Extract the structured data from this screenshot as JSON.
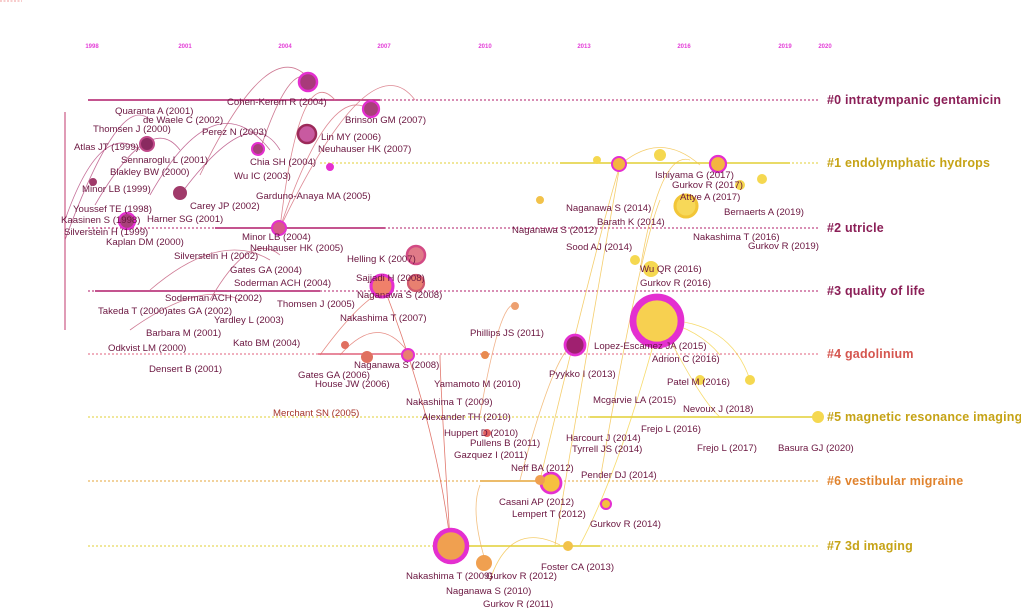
{
  "timeline": {
    "years": [
      "1998",
      "2001",
      "2004",
      "2007",
      "2010",
      "2013",
      "2016",
      "2019",
      "2020"
    ],
    "year_color": "#e43fd8"
  },
  "clusters": [
    {
      "id": "c0",
      "label": "#0 intratympanic gentamicin",
      "color": "#8b1f57"
    },
    {
      "id": "c1",
      "label": "#1 endolymphatic hydrops",
      "color": "#c6a316"
    },
    {
      "id": "c2",
      "label": "#2 utricle",
      "color": "#8b1f57"
    },
    {
      "id": "c3",
      "label": "#3 quality of life",
      "color": "#8b1f57"
    },
    {
      "id": "c4",
      "label": "#4 gadolinium",
      "color": "#d5564f"
    },
    {
      "id": "c5",
      "label": "#5 magnetic resonance imaging",
      "color": "#c6a316"
    },
    {
      "id": "c6",
      "label": "#6 vestibular migraine",
      "color": "#e0832e"
    },
    {
      "id": "c7",
      "label": "#7 3d imaging",
      "color": "#c6a316"
    }
  ],
  "references": [
    {
      "id": "r1",
      "label": "Cohen-Kerem R (2004)",
      "color": "#6b1640"
    },
    {
      "id": "r2",
      "label": "Quaranta A (2001)",
      "color": "#6b1640"
    },
    {
      "id": "r3",
      "label": "Brinson GM (2007)",
      "color": "#6b1640"
    },
    {
      "id": "r4",
      "label": "de Waele C (2002)",
      "color": "#6b1640"
    },
    {
      "id": "r5",
      "label": "Perez N (2003)",
      "color": "#6b1640"
    },
    {
      "id": "r6",
      "label": "Lin MY (2006)",
      "color": "#6b1640"
    },
    {
      "id": "r7",
      "label": "Thomsen J (2000)",
      "color": "#6b1640"
    },
    {
      "id": "r8",
      "label": "Neuhauser HK (2007)",
      "color": "#6b1640"
    },
    {
      "id": "r9",
      "label": "Atlas JT (1999)",
      "color": "#6b1640"
    },
    {
      "id": "r10",
      "label": "Chia SH (2004)",
      "color": "#6b1640"
    },
    {
      "id": "r11",
      "label": "Sennaroglu L (2001)",
      "color": "#6b1640"
    },
    {
      "id": "r12",
      "label": "Blakley BW (2000)",
      "color": "#6b1640"
    },
    {
      "id": "r13",
      "label": "Wu IC (2003)",
      "color": "#6b1640"
    },
    {
      "id": "r14",
      "label": "Minor LB (1999)",
      "color": "#6b1640"
    },
    {
      "id": "r15",
      "label": "Garduno-Anaya MA (2005)",
      "color": "#6b1640"
    },
    {
      "id": "r16",
      "label": "Carey JP (2002)",
      "color": "#6b1640"
    },
    {
      "id": "r17",
      "label": "Youssef TE (1998)",
      "color": "#6b1640"
    },
    {
      "id": "r18",
      "label": "Harner SG (2001)",
      "color": "#6b1640"
    },
    {
      "id": "r19",
      "label": "Kaasinen S (1998)",
      "color": "#6b1640"
    },
    {
      "id": "r20",
      "label": "Silverstein H (1999)",
      "color": "#6b1640"
    },
    {
      "id": "r21",
      "label": "Minor LB (2004)",
      "color": "#6b1640"
    },
    {
      "id": "r22",
      "label": "Kaplan DM (2000)",
      "color": "#6b1640"
    },
    {
      "id": "r23",
      "label": "Neuhauser HK (2005)",
      "color": "#6b1640"
    },
    {
      "id": "r24",
      "label": "Silverstein H (2002)",
      "color": "#6b1640"
    },
    {
      "id": "r25",
      "label": "Helling K (2007)",
      "color": "#6b1640"
    },
    {
      "id": "r26",
      "label": "Gates GA (2004)",
      "color": "#6b1640"
    },
    {
      "id": "r27",
      "label": "Soderman ACH (2004)",
      "color": "#6b1640"
    },
    {
      "id": "r28",
      "label": "Sajjadi H (2008)",
      "color": "#6b1640"
    },
    {
      "id": "r29",
      "label": "Naganawa S (2008)",
      "color": "#6b1640"
    },
    {
      "id": "r30",
      "label": "Soderman ACH (2002)",
      "color": "#6b1640"
    },
    {
      "id": "r31",
      "label": "Thomsen J (2005)",
      "color": "#6b1640"
    },
    {
      "id": "r32",
      "label": "Takeda T (2000)ates GA (2002)",
      "color": "#6b1640"
    },
    {
      "id": "r33",
      "label": "Yardley L (2003)",
      "color": "#6b1640"
    },
    {
      "id": "r34",
      "label": "Nakashima T (2007)",
      "color": "#6b1640"
    },
    {
      "id": "r35",
      "label": "Barbara M (2001)",
      "color": "#6b1640"
    },
    {
      "id": "r36",
      "label": "Kato BM (2004)",
      "color": "#6b1640"
    },
    {
      "id": "r37",
      "label": "Odkvist LM (2000)",
      "color": "#6b1640"
    },
    {
      "id": "r38",
      "label": "Densert B (2001)",
      "color": "#6b1640"
    },
    {
      "id": "r39",
      "label": "Naganawa S (2008)",
      "color": "#6b1640"
    },
    {
      "id": "r40",
      "label": "Gates GA (2006)",
      "color": "#6b1640"
    },
    {
      "id": "r41",
      "label": "House JW (2006)",
      "color": "#6b1640"
    },
    {
      "id": "r42",
      "label": "Merchant SN (2005)",
      "color": "#a5332a"
    },
    {
      "id": "r43",
      "label": "Phillips JS (2011)",
      "color": "#6b1640"
    },
    {
      "id": "r44",
      "label": "Yamamoto M (2010)",
      "color": "#6b1640"
    },
    {
      "id": "r45",
      "label": "Nakashima T (2009)",
      "color": "#6b1640"
    },
    {
      "id": "r46",
      "label": "Alexander TH (2010)",
      "color": "#6b1640"
    },
    {
      "id": "r47",
      "label": "Huppert D (2010)",
      "color": "#6b1640"
    },
    {
      "id": "r48",
      "label": "Pullens B (2011)",
      "color": "#6b1640"
    },
    {
      "id": "r49",
      "label": "Gazquez I (2011)",
      "color": "#6b1640"
    },
    {
      "id": "r50",
      "label": "Neff BA (2012)",
      "color": "#6b1640"
    },
    {
      "id": "r51",
      "label": "Casani AP (2012)",
      "color": "#6b1640"
    },
    {
      "id": "r52",
      "label": "Lempert T (2012)",
      "color": "#6b1640"
    },
    {
      "id": "r53",
      "label": "Nakashima T (2009)",
      "color": "#6b1640"
    },
    {
      "id": "r54",
      "label": "Gurkov R (2012)",
      "color": "#6b1640"
    },
    {
      "id": "r55",
      "label": "Naganawa S (2010)",
      "color": "#6b1640"
    },
    {
      "id": "r56",
      "label": "Gurkov R (2011)",
      "color": "#6b1640"
    },
    {
      "id": "r57",
      "label": "Foster CA (2013)",
      "color": "#6b1640"
    },
    {
      "id": "r58",
      "label": "Naganawa S (2012)",
      "color": "#6b1640"
    },
    {
      "id": "r59",
      "label": "Barath K (2014)",
      "color": "#6b1640"
    },
    {
      "id": "r60",
      "label": "Naganawa S (2014)",
      "color": "#6b1640"
    },
    {
      "id": "r61",
      "label": "Sood AJ (2014)",
      "color": "#6b1640"
    },
    {
      "id": "r62",
      "label": "Ishiyama G (2017)",
      "color": "#6b1640"
    },
    {
      "id": "r63",
      "label": "Gurkov R (2017)",
      "color": "#6b1640"
    },
    {
      "id": "r64",
      "label": "Attye A (2017)",
      "color": "#6b1640"
    },
    {
      "id": "r65",
      "label": "Bernaerts A (2019)",
      "color": "#6b1640"
    },
    {
      "id": "r66",
      "label": "Nakashima T (2016)",
      "color": "#6b1640"
    },
    {
      "id": "r67",
      "label": "Gurkov R (2019)",
      "color": "#6b1640"
    },
    {
      "id": "r68",
      "label": "Wu QR (2016)",
      "color": "#6b1640"
    },
    {
      "id": "r69",
      "label": "Gurkov R (2016)",
      "color": "#6b1640"
    },
    {
      "id": "r70",
      "label": "Lopez-Escamez JA (2015)",
      "color": "#6b1640"
    },
    {
      "id": "r71",
      "label": "Adrion C (2016)",
      "color": "#6b1640"
    },
    {
      "id": "r72",
      "label": "Pyykko I (2013)",
      "color": "#6b1640"
    },
    {
      "id": "r73",
      "label": "Patel M (2016)",
      "color": "#6b1640"
    },
    {
      "id": "r74",
      "label": "Mcgarvie LA (2015)",
      "color": "#6b1640"
    },
    {
      "id": "r75",
      "label": "Nevoux J (2018)",
      "color": "#6b1640"
    },
    {
      "id": "r76",
      "label": "Frejo L (2016)",
      "color": "#6b1640"
    },
    {
      "id": "r77",
      "label": "Harcourt J (2014)",
      "color": "#6b1640"
    },
    {
      "id": "r78",
      "label": "Tyrrell JS (2014)",
      "color": "#6b1640"
    },
    {
      "id": "r79",
      "label": "Frejo L (2017)",
      "color": "#6b1640"
    },
    {
      "id": "r80",
      "label": "Basura GJ (2020)",
      "color": "#6b1640"
    },
    {
      "id": "r81",
      "label": "Pender DJ (2014)",
      "color": "#6b1640"
    },
    {
      "id": "r82",
      "label": "Gurkov R (2014)",
      "color": "#6b1640"
    }
  ]
}
